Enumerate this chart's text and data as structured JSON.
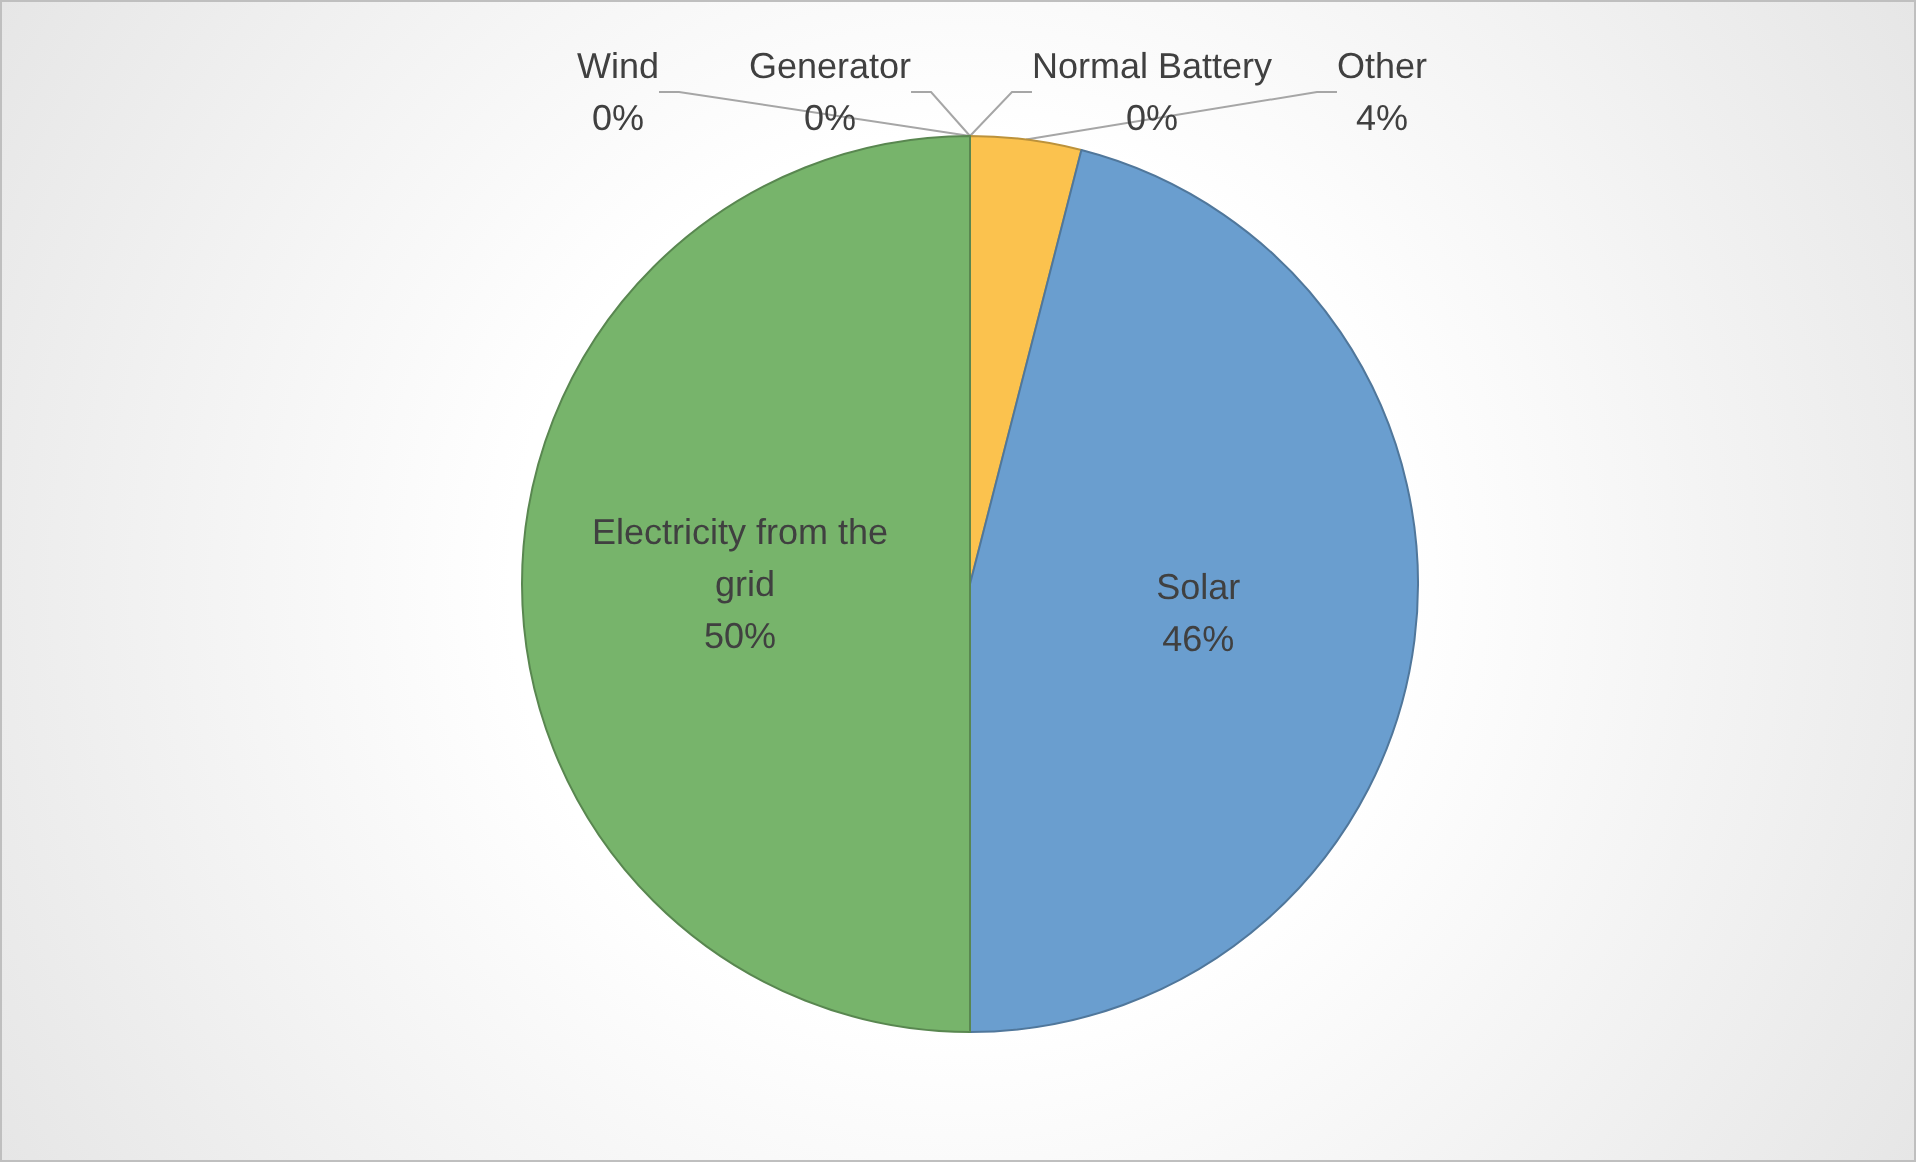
{
  "chart_data": {
    "type": "pie",
    "categories": [
      "Wind",
      "Generator",
      "Normal Battery",
      "Other",
      "Solar",
      "Electricity from the grid"
    ],
    "values": [
      0,
      0,
      0,
      4,
      46,
      50
    ],
    "value_labels": [
      "0%",
      "0%",
      "0%",
      "4%",
      "46%",
      "50%"
    ],
    "colors": [
      "#a5a5a5",
      "#5b5b5b",
      "#264478",
      "#fbc24e",
      "#6a9ecf",
      "#77b46b"
    ],
    "legend": false
  }
}
